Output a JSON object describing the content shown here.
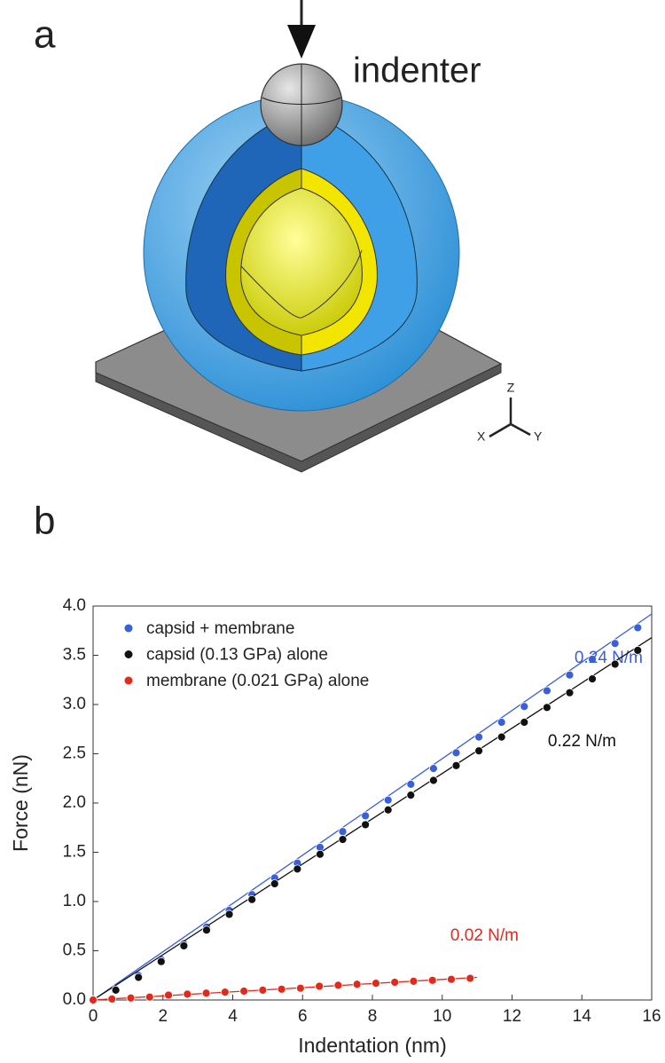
{
  "panel_a": {
    "label": "a",
    "indenter_label": "indenter",
    "axes": {
      "z": "Z",
      "x": "X",
      "y": "Y"
    }
  },
  "chart_data": {
    "type": "scatter",
    "panel_label": "b",
    "x_label": "Indentation (nm)",
    "y_label": "Force (nN)",
    "xlim": [
      0,
      16
    ],
    "xticks": [
      0,
      2,
      4,
      6,
      8,
      10,
      12,
      14,
      16
    ],
    "ylim": [
      0,
      4
    ],
    "yticks": [
      {
        "value": 0,
        "label": "0.0"
      },
      0.5,
      {
        "value": 1,
        "label": "1.0"
      },
      1.5,
      {
        "value": 2,
        "label": "2.0"
      },
      2.5,
      {
        "value": 3,
        "label": "3.0"
      },
      3.5,
      {
        "value": 4,
        "label": "4.0"
      }
    ],
    "legend": "upper left",
    "series": [
      {
        "name": "capsid + membrane",
        "color": "#3a5fd9",
        "slope_label": "0.24 N/m",
        "x": [
          0,
          0.65,
          1.3,
          1.95,
          2.6,
          3.25,
          3.9,
          4.55,
          5.2,
          5.85,
          6.5,
          7.15,
          7.8,
          8.45,
          9.1,
          9.75,
          10.4,
          11.05,
          11.7,
          12.35,
          13,
          13.65,
          14.3,
          14.95,
          15.6
        ],
        "values": [
          0,
          0.11,
          0.25,
          0.41,
          0.57,
          0.74,
          0.91,
          1.07,
          1.24,
          1.39,
          1.55,
          1.71,
          1.87,
          2.03,
          2.19,
          2.35,
          2.51,
          2.67,
          2.82,
          2.98,
          3.14,
          3.3,
          3.46,
          3.62,
          3.78
        ],
        "fit_x": [
          0,
          16
        ],
        "fit_values": [
          0,
          3.92
        ]
      },
      {
        "name": "capsid (0.13 GPa) alone",
        "color": "#111111",
        "slope_label": "0.22 N/m",
        "x": [
          0,
          0.65,
          1.3,
          1.95,
          2.6,
          3.25,
          3.9,
          4.55,
          5.2,
          5.85,
          6.5,
          7.15,
          7.8,
          8.45,
          9.1,
          9.75,
          10.4,
          11.05,
          11.7,
          12.35,
          13,
          13.65,
          14.3,
          14.95,
          15.6
        ],
        "values": [
          0,
          0.1,
          0.23,
          0.39,
          0.55,
          0.71,
          0.87,
          1.02,
          1.18,
          1.33,
          1.48,
          1.63,
          1.78,
          1.93,
          2.08,
          2.23,
          2.38,
          2.53,
          2.67,
          2.82,
          2.97,
          3.12,
          3.26,
          3.41,
          3.55
        ],
        "fit_x": [
          0,
          16
        ],
        "fit_values": [
          0,
          3.68
        ]
      },
      {
        "name": "membrane (0.021 GPa) alone",
        "color": "#e02a1c",
        "slope_label": "0.02 N/m",
        "x": [
          0,
          0.54,
          1.08,
          1.62,
          2.16,
          2.7,
          3.24,
          3.78,
          4.32,
          4.86,
          5.4,
          5.94,
          6.48,
          7.02,
          7.56,
          8.1,
          8.64,
          9.18,
          9.72,
          10.26,
          10.8
        ],
        "values": [
          0,
          0.01,
          0.02,
          0.03,
          0.05,
          0.06,
          0.07,
          0.08,
          0.09,
          0.1,
          0.11,
          0.12,
          0.14,
          0.15,
          0.16,
          0.17,
          0.18,
          0.19,
          0.2,
          0.21,
          0.22
        ],
        "fit_x": [
          0,
          11
        ],
        "fit_values": [
          0,
          0.23
        ]
      }
    ]
  }
}
